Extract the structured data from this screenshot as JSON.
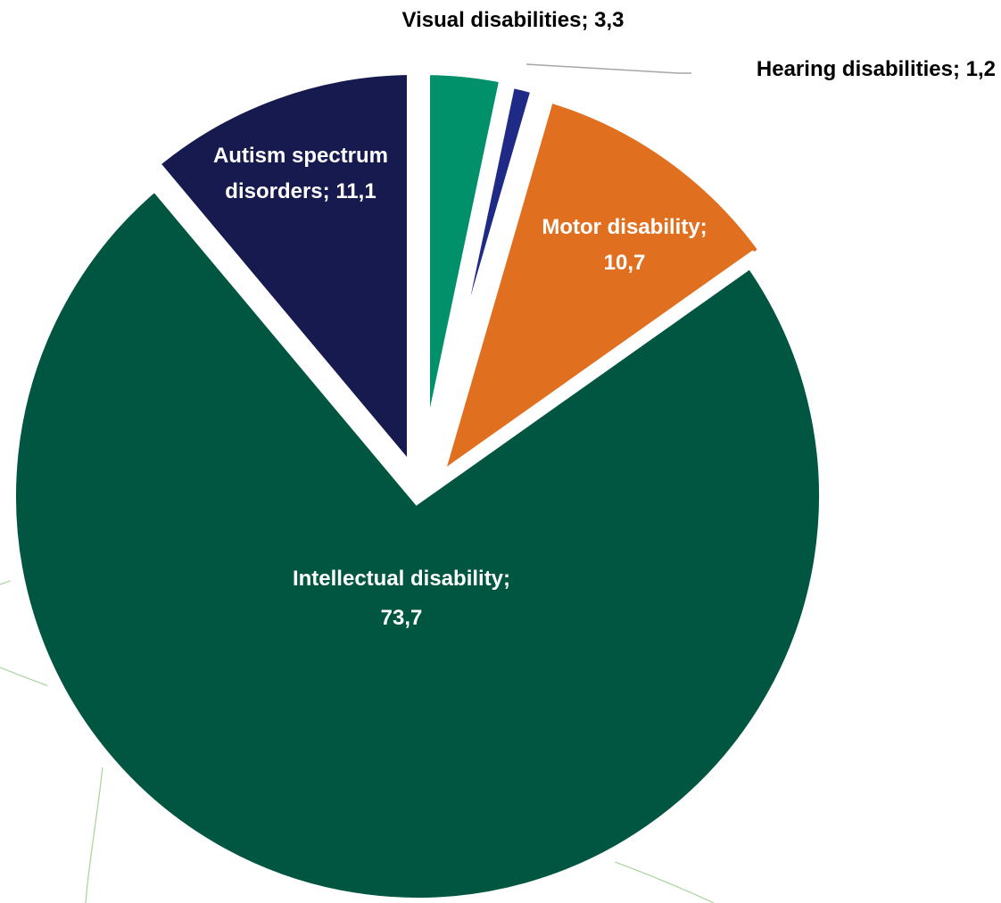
{
  "chart_data": {
    "type": "pie",
    "title": "",
    "start_angle_deg": 0,
    "direction": "clockwise",
    "slices": [
      {
        "name": "Visual disabilities",
        "value": 3.3,
        "color": "#00906a",
        "label_color": "#000000",
        "label_lines": [
          "Visual disabilities; 3,3"
        ]
      },
      {
        "name": "Hearing disabilities",
        "value": 1.2,
        "color": "#1f2a86",
        "label_color": "#000000",
        "label_lines": [
          "Hearing disabilities; 1,2"
        ]
      },
      {
        "name": "Motor disability",
        "value": 10.7,
        "color": "#e07020",
        "label_color": "#ffffff",
        "label_lines": [
          "Motor disability;",
          "10,7"
        ]
      },
      {
        "name": "Intellectual disability",
        "value": 73.7,
        "color": "#005641",
        "label_color": "#ffffff",
        "label_lines": [
          "Intellectual  disability;",
          "73,7"
        ]
      },
      {
        "name": "Autism spectrum disorders",
        "value": 11.1,
        "color": "#161a4f",
        "label_color": "#ffffff",
        "label_lines": [
          "Autism spectrum",
          "disorders; 11,1"
        ]
      }
    ]
  }
}
